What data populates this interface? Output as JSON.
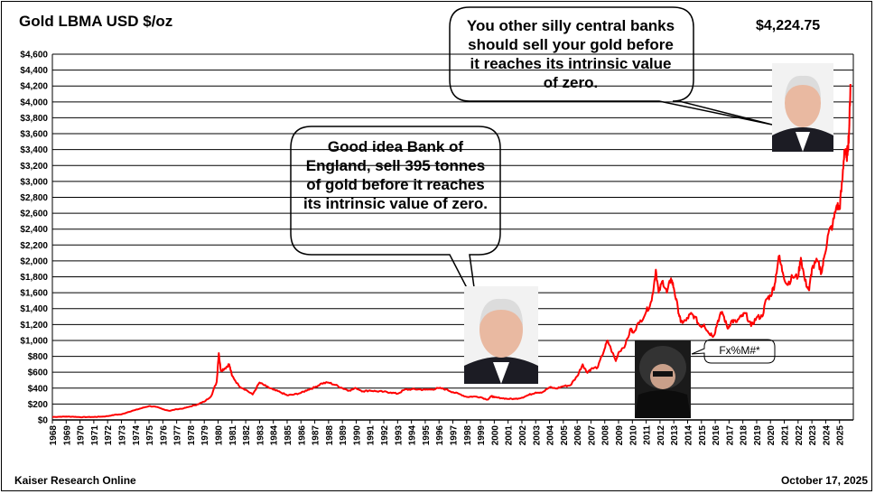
{
  "header": {
    "title": "Gold LBMA USD $/oz",
    "latest_price": "$4,224.75"
  },
  "footer": {
    "source": "Kaiser Research Online",
    "date": "October 17, 2025"
  },
  "annotations": {
    "top_bubble": "You other silly central banks should sell your gold before it reaches its intrinsic value of zero.",
    "middle_bubble": "Good idea Bank of England, sell 395 tonnes of gold before it reaches its intrinsic value of zero.",
    "small_bubble": "Fx%M#*"
  },
  "colors": {
    "line": "#ff0000",
    "grid": "#000000",
    "background": "#ffffff",
    "text": "#000000"
  },
  "chart_data": {
    "type": "line",
    "title": "Gold LBMA USD $/oz",
    "ylim": [
      0,
      4600
    ],
    "y_ticks": [
      "$0",
      "$200",
      "$400",
      "$600",
      "$800",
      "$1,000",
      "$1,200",
      "$1,400",
      "$1,600",
      "$1,800",
      "$2,000",
      "$2,200",
      "$2,400",
      "$2,600",
      "$2,800",
      "$3,000",
      "$3,200",
      "$3,400",
      "$3,600",
      "$3,800",
      "$4,000",
      "$4,200",
      "$4,400",
      "$4,600"
    ],
    "x_ticks": [
      "1968",
      "1969",
      "1970",
      "1971",
      "1972",
      "1973",
      "1974",
      "1975",
      "1976",
      "1977",
      "1978",
      "1979",
      "1980",
      "1981",
      "1982",
      "1983",
      "1984",
      "1985",
      "1986",
      "1987",
      "1988",
      "1989",
      "1990",
      "1991",
      "1992",
      "1993",
      "1994",
      "1995",
      "1996",
      "1997",
      "1998",
      "1999",
      "2000",
      "2001",
      "2002",
      "2003",
      "2004",
      "2005",
      "2006",
      "2007",
      "2008",
      "2009",
      "2010",
      "2011",
      "2012",
      "2013",
      "2014",
      "2015",
      "2016",
      "2017",
      "2018",
      "2019",
      "2020",
      "2021",
      "2022",
      "2023",
      "2024",
      "2025"
    ],
    "grid": "horizontal",
    "series": [
      {
        "values": [
          [
            1968.0,
            38
          ],
          [
            1968.5,
            40
          ],
          [
            1969.0,
            42
          ],
          [
            1969.5,
            41
          ],
          [
            1970.0,
            35
          ],
          [
            1970.5,
            36
          ],
          [
            1971.0,
            38
          ],
          [
            1971.5,
            41
          ],
          [
            1972.0,
            48
          ],
          [
            1972.5,
            65
          ],
          [
            1973.0,
            70
          ],
          [
            1973.5,
            100
          ],
          [
            1974.0,
            125
          ],
          [
            1974.5,
            150
          ],
          [
            1975.0,
            175
          ],
          [
            1975.5,
            165
          ],
          [
            1976.0,
            135
          ],
          [
            1976.5,
            115
          ],
          [
            1977.0,
            135
          ],
          [
            1977.5,
            145
          ],
          [
            1978.0,
            170
          ],
          [
            1978.5,
            195
          ],
          [
            1979.0,
            230
          ],
          [
            1979.5,
            300
          ],
          [
            1979.9,
            480
          ],
          [
            1980.05,
            840
          ],
          [
            1980.2,
            620
          ],
          [
            1980.5,
            650
          ],
          [
            1980.8,
            700
          ],
          [
            1981.0,
            560
          ],
          [
            1981.5,
            430
          ],
          [
            1982.0,
            380
          ],
          [
            1982.5,
            320
          ],
          [
            1983.0,
            470
          ],
          [
            1983.5,
            420
          ],
          [
            1984.0,
            380
          ],
          [
            1984.5,
            350
          ],
          [
            1985.0,
            310
          ],
          [
            1985.5,
            320
          ],
          [
            1986.0,
            340
          ],
          [
            1986.5,
            380
          ],
          [
            1987.0,
            410
          ],
          [
            1987.5,
            460
          ],
          [
            1988.0,
            470
          ],
          [
            1988.5,
            440
          ],
          [
            1989.0,
            400
          ],
          [
            1989.5,
            370
          ],
          [
            1990.0,
            400
          ],
          [
            1990.5,
            360
          ],
          [
            1991.0,
            370
          ],
          [
            1991.5,
            360
          ],
          [
            1992.0,
            355
          ],
          [
            1992.5,
            345
          ],
          [
            1993.0,
            330
          ],
          [
            1993.5,
            380
          ],
          [
            1994.0,
            385
          ],
          [
            1994.5,
            385
          ],
          [
            1995.0,
            380
          ],
          [
            1995.5,
            385
          ],
          [
            1996.0,
            400
          ],
          [
            1996.5,
            385
          ],
          [
            1997.0,
            350
          ],
          [
            1997.5,
            325
          ],
          [
            1998.0,
            290
          ],
          [
            1998.5,
            295
          ],
          [
            1999.0,
            287
          ],
          [
            1999.5,
            255
          ],
          [
            1999.8,
            300
          ],
          [
            2000.0,
            285
          ],
          [
            2000.5,
            275
          ],
          [
            2001.0,
            265
          ],
          [
            2001.5,
            265
          ],
          [
            2002.0,
            280
          ],
          [
            2002.5,
            315
          ],
          [
            2003.0,
            345
          ],
          [
            2003.5,
            350
          ],
          [
            2004.0,
            410
          ],
          [
            2004.5,
            395
          ],
          [
            2005.0,
            425
          ],
          [
            2005.5,
            435
          ],
          [
            2006.0,
            550
          ],
          [
            2006.4,
            700
          ],
          [
            2006.7,
            600
          ],
          [
            2007.0,
            640
          ],
          [
            2007.5,
            665
          ],
          [
            2008.0,
            900
          ],
          [
            2008.2,
            1000
          ],
          [
            2008.8,
            740
          ],
          [
            2009.0,
            850
          ],
          [
            2009.5,
            950
          ],
          [
            2009.9,
            1150
          ],
          [
            2010.0,
            1100
          ],
          [
            2010.5,
            1220
          ],
          [
            2011.0,
            1360
          ],
          [
            2011.4,
            1500
          ],
          [
            2011.7,
            1890
          ],
          [
            2011.9,
            1600
          ],
          [
            2012.2,
            1750
          ],
          [
            2012.5,
            1600
          ],
          [
            2012.8,
            1780
          ],
          [
            2013.0,
            1660
          ],
          [
            2013.3,
            1400
          ],
          [
            2013.5,
            1230
          ],
          [
            2013.9,
            1250
          ],
          [
            2014.2,
            1330
          ],
          [
            2014.5,
            1300
          ],
          [
            2014.9,
            1180
          ],
          [
            2015.2,
            1200
          ],
          [
            2015.5,
            1100
          ],
          [
            2015.9,
            1060
          ],
          [
            2016.2,
            1250
          ],
          [
            2016.5,
            1360
          ],
          [
            2016.9,
            1150
          ],
          [
            2017.2,
            1250
          ],
          [
            2017.5,
            1230
          ],
          [
            2017.9,
            1300
          ],
          [
            2018.2,
            1340
          ],
          [
            2018.6,
            1180
          ],
          [
            2019.0,
            1290
          ],
          [
            2019.4,
            1300
          ],
          [
            2019.7,
            1520
          ],
          [
            2020.0,
            1560
          ],
          [
            2020.3,
            1700
          ],
          [
            2020.6,
            2060
          ],
          [
            2020.9,
            1850
          ],
          [
            2021.2,
            1700
          ],
          [
            2021.6,
            1800
          ],
          [
            2022.0,
            1800
          ],
          [
            2022.2,
            2040
          ],
          [
            2022.5,
            1750
          ],
          [
            2022.8,
            1630
          ],
          [
            2023.0,
            1900
          ],
          [
            2023.4,
            2000
          ],
          [
            2023.7,
            1850
          ],
          [
            2023.9,
            2060
          ],
          [
            2024.2,
            2350
          ],
          [
            2024.5,
            2450
          ],
          [
            2024.8,
            2700
          ],
          [
            2025.0,
            2650
          ],
          [
            2025.2,
            3000
          ],
          [
            2025.35,
            3400
          ],
          [
            2025.5,
            3300
          ],
          [
            2025.6,
            3400
          ],
          [
            2025.7,
            3650
          ],
          [
            2025.79,
            4224.75
          ]
        ]
      }
    ]
  }
}
